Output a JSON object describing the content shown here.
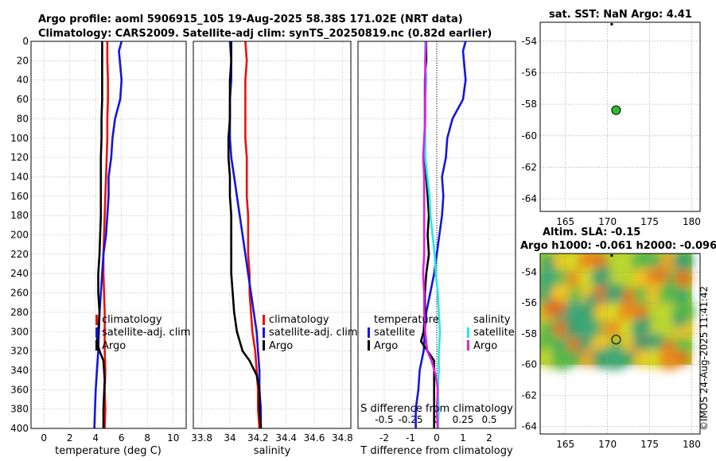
{
  "figure": {
    "title_line1": "Argo profile: aoml 5906915_105 19-Aug-2025 58.38S 171.02E (NRT data)",
    "title_line2": "Climatology: CARS2009. Satellite-adj clim: synTS_20250819.nc (0.82d earlier)",
    "side_stamp": "©IMOS 24-Aug-2025 11:41:42"
  },
  "colors": {
    "climatology": "#e8120a",
    "satellite": "#1515dd",
    "argo": "#000000",
    "satellite_salinity": "#22e8e8",
    "argo_salinity": "#e020e0",
    "grid": "#b0b0b0",
    "argo_marker": "#2dbe2d"
  },
  "chart_data": [
    {
      "type": "line",
      "name": "temperature_panel",
      "xlabel": "temperature (deg C)",
      "ylabel": "",
      "xlim": [
        -1,
        11
      ],
      "ylim": [
        400,
        0
      ],
      "xticks": [
        0,
        2,
        4,
        6,
        8,
        10
      ],
      "xtick_labels": [
        "0",
        "2",
        "4",
        "6",
        "8",
        "10"
      ],
      "yticks": [
        0,
        20,
        40,
        60,
        80,
        100,
        120,
        140,
        160,
        180,
        200,
        220,
        240,
        260,
        280,
        300,
        320,
        340,
        360,
        380,
        400
      ],
      "ytick_labels": [
        "0",
        "20",
        "40",
        "60",
        "80",
        "100",
        "120",
        "140",
        "160",
        "180",
        "200",
        "220",
        "240",
        "260",
        "280",
        "300",
        "320",
        "340",
        "360",
        "380",
        "400"
      ],
      "grid": true,
      "legend": [
        "climatology",
        "satellite-adj. clim",
        "Argo"
      ],
      "legend_location": "lower-right",
      "series": [
        {
          "name": "climatology",
          "x": [
            4.9,
            4.9,
            4.95,
            4.95,
            4.9,
            4.9,
            4.85,
            4.8,
            4.75,
            4.7,
            4.65,
            4.6,
            4.6,
            4.65,
            4.7,
            4.7,
            4.7,
            4.75,
            4.7,
            4.75,
            4.7
          ],
          "y": [
            0,
            20,
            40,
            60,
            80,
            100,
            120,
            140,
            160,
            180,
            200,
            220,
            240,
            260,
            280,
            300,
            320,
            340,
            360,
            380,
            400
          ]
        },
        {
          "name": "satellite-adj. clim",
          "x": [
            6.0,
            5.8,
            6.0,
            5.9,
            5.5,
            5.3,
            5.2,
            5.0,
            5.0,
            4.9,
            4.8,
            4.6,
            4.5,
            4.4,
            4.3,
            4.25,
            4.2,
            4.1,
            4.0,
            3.95,
            3.9
          ],
          "y": [
            0,
            10,
            40,
            60,
            80,
            100,
            120,
            140,
            160,
            180,
            200,
            220,
            240,
            260,
            280,
            300,
            320,
            340,
            360,
            380,
            400
          ]
        },
        {
          "name": "Argo",
          "x": [
            4.5,
            4.5,
            4.5,
            4.5,
            4.45,
            4.45,
            4.4,
            4.4,
            4.4,
            4.4,
            4.35,
            4.3,
            4.2,
            4.2,
            4.3,
            4.2,
            4.1,
            4.3,
            4.6,
            4.7,
            4.6,
            4.6
          ],
          "y": [
            0,
            20,
            40,
            60,
            80,
            100,
            120,
            140,
            160,
            180,
            200,
            220,
            240,
            260,
            280,
            300,
            310,
            320,
            330,
            350,
            380,
            400
          ]
        }
      ]
    },
    {
      "type": "line",
      "name": "salinity_panel",
      "xlabel": "salinity",
      "ylabel": "",
      "xlim": [
        33.74,
        34.86
      ],
      "ylim": [
        400,
        0
      ],
      "xticks": [
        33.8,
        34,
        34.2,
        34.4,
        34.6,
        34.8
      ],
      "xtick_labels": [
        "33.8",
        "34",
        "34.2",
        "34.4",
        "34.6",
        "34.8"
      ],
      "grid": true,
      "legend": [
        "climatology",
        "satellite-adj. clim",
        "Argo"
      ],
      "legend_location": "lower-right",
      "series": [
        {
          "name": "climatology",
          "x": [
            34.11,
            34.12,
            34.11,
            34.11,
            34.11,
            34.11,
            34.12,
            34.12,
            34.12,
            34.13,
            34.13,
            34.13,
            34.14,
            34.14,
            34.15,
            34.16,
            34.18,
            34.19,
            34.2,
            34.2,
            34.21
          ],
          "y": [
            0,
            20,
            40,
            60,
            80,
            100,
            120,
            140,
            160,
            180,
            200,
            220,
            240,
            260,
            280,
            300,
            320,
            340,
            360,
            380,
            400
          ]
        },
        {
          "name": "satellite-adj. clim",
          "x": [
            34.0,
            34.01,
            34.01,
            34.0,
            34.0,
            34.0,
            34.01,
            34.03,
            34.05,
            34.07,
            34.09,
            34.11,
            34.13,
            34.15,
            34.17,
            34.19,
            34.2,
            34.21,
            34.21,
            34.22,
            34.22
          ],
          "y": [
            0,
            20,
            40,
            60,
            80,
            100,
            120,
            140,
            160,
            180,
            200,
            220,
            240,
            260,
            280,
            300,
            320,
            340,
            360,
            380,
            400
          ]
        },
        {
          "name": "Argo",
          "x": [
            34.01,
            34.01,
            34.0,
            34.0,
            34.0,
            33.99,
            33.99,
            34.0,
            34.0,
            34.01,
            34.01,
            34.01,
            34.01,
            34.02,
            34.03,
            34.05,
            34.09,
            34.14,
            34.19,
            34.21,
            34.21,
            34.22
          ],
          "y": [
            0,
            20,
            40,
            60,
            80,
            100,
            120,
            140,
            160,
            180,
            200,
            220,
            240,
            260,
            280,
            300,
            320,
            330,
            345,
            360,
            380,
            400
          ]
        }
      ]
    },
    {
      "type": "line",
      "name": "difference_panel",
      "xlabel": "T difference from climatology",
      "xlabel_top": "S difference from climatology",
      "xlim": [
        -3,
        3
      ],
      "ylim": [
        400,
        0
      ],
      "xticks": [
        -2,
        -1,
        0,
        1,
        2
      ],
      "xtick_labels": [
        "-2",
        "-1",
        "0",
        "1",
        "2"
      ],
      "xticks_top": [
        -0.5,
        -0.25,
        0,
        0.25,
        0.5
      ],
      "xtick_top_labels": [
        "-0.5",
        "-0.25",
        "0",
        "0.25",
        "0.5"
      ],
      "grid": true,
      "legend_temperature_title": "temperature",
      "legend_salinity_title": "salinity",
      "legend_temperature": [
        "satellite",
        "Argo"
      ],
      "legend_salinity": [
        "satellite",
        "Argo"
      ],
      "series": [
        {
          "name": "temperature satellite",
          "x": [
            1.1,
            1.0,
            1.1,
            1.0,
            0.6,
            0.4,
            0.35,
            0.2,
            0.25,
            0.2,
            0.1,
            0.0,
            -0.1,
            -0.25,
            -0.4,
            -0.45,
            -0.5,
            -0.65,
            -0.7,
            -0.8,
            -0.8
          ],
          "y": [
            0,
            10,
            40,
            60,
            80,
            100,
            120,
            140,
            160,
            180,
            200,
            220,
            240,
            260,
            280,
            300,
            320,
            340,
            360,
            380,
            400
          ]
        },
        {
          "name": "temperature Argo",
          "x": [
            -0.4,
            -0.4,
            -0.45,
            -0.45,
            -0.45,
            -0.45,
            -0.45,
            -0.4,
            -0.35,
            -0.3,
            -0.35,
            -0.3,
            -0.4,
            -0.45,
            -0.45,
            -0.5,
            -0.6,
            -0.35,
            -0.1,
            -0.1,
            -0.1,
            -0.1
          ],
          "y": [
            0,
            20,
            40,
            60,
            80,
            100,
            120,
            140,
            160,
            180,
            200,
            220,
            240,
            260,
            280,
            300,
            310,
            320,
            330,
            350,
            380,
            400
          ]
        },
        {
          "name": "salinity satellite",
          "x": [
            -0.11,
            -0.11,
            -0.1,
            -0.11,
            -0.11,
            -0.11,
            -0.11,
            -0.09,
            -0.07,
            -0.06,
            -0.04,
            -0.02,
            -0.01,
            0.01,
            0.02,
            0.03,
            0.02,
            0.02,
            0.01,
            0.02,
            0.01
          ],
          "y": [
            0,
            20,
            40,
            60,
            80,
            100,
            120,
            140,
            160,
            180,
            200,
            220,
            240,
            260,
            280,
            300,
            320,
            340,
            360,
            380,
            400
          ]
        },
        {
          "name": "salinity Argo",
          "x": [
            -0.1,
            -0.11,
            -0.11,
            -0.11,
            -0.11,
            -0.12,
            -0.13,
            -0.12,
            -0.12,
            -0.12,
            -0.12,
            -0.12,
            -0.13,
            -0.12,
            -0.12,
            -0.11,
            -0.09,
            -0.05,
            -0.01,
            0.01,
            0.0,
            0.01
          ],
          "y": [
            0,
            20,
            40,
            60,
            80,
            100,
            120,
            140,
            160,
            180,
            200,
            220,
            240,
            260,
            280,
            300,
            320,
            330,
            345,
            360,
            380,
            400
          ]
        }
      ]
    },
    {
      "type": "scatter",
      "name": "sst_map",
      "title": "sat. SST: NaN Argo: 4.41",
      "xlim": [
        162,
        181
      ],
      "ylim": [
        -64.8,
        -52.8
      ],
      "xticks": [
        165,
        170,
        175,
        180
      ],
      "xtick_labels": [
        "165",
        "170",
        "175",
        "180"
      ],
      "yticks": [
        -54,
        -56,
        -58,
        -60,
        -62,
        -64
      ],
      "ytick_labels": [
        "-54",
        "-56",
        "-58",
        "-60",
        "-62",
        "-64"
      ],
      "grid": true,
      "points": [
        {
          "lon": 171.02,
          "lat": -58.38
        }
      ]
    },
    {
      "type": "heatmap",
      "name": "sla_map",
      "title_line1": "Altim. SLA: -0.15",
      "title_line2": "Argo h1000: -0.061 h2000: -0.096",
      "xlim": [
        162,
        181
      ],
      "ylim": [
        -64.5,
        -52.8
      ],
      "xticks": [
        165,
        170,
        175,
        180
      ],
      "xtick_labels": [
        "165",
        "170",
        "175",
        "180"
      ],
      "yticks": [
        -54,
        -56,
        -58,
        -60,
        -62,
        -64
      ],
      "ytick_labels": [
        "-54",
        "-56",
        "-58",
        "-60",
        "-62",
        "-64"
      ],
      "grid": true,
      "field_extent": {
        "lon": [
          162,
          180
        ],
        "lat": [
          -60,
          -52.8
        ]
      },
      "points": [
        {
          "lon": 171.02,
          "lat": -58.38
        }
      ]
    }
  ]
}
